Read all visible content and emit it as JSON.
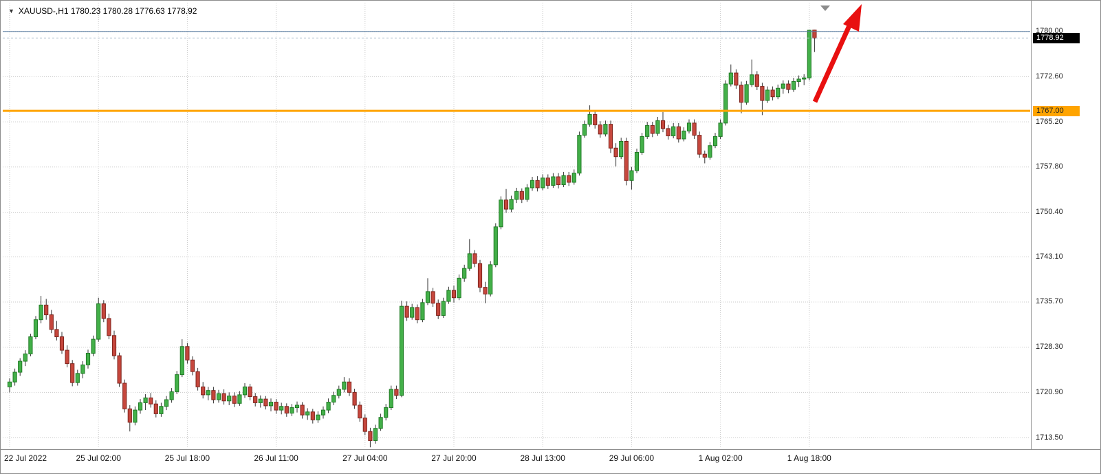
{
  "header": {
    "title_text": "XAUUSD-,H1 1780.23 1780.28 1776.63 1778.92",
    "symbol": "XAUUSD-",
    "timeframe": "H1"
  },
  "chart_data": {
    "type": "candlestick",
    "symbol": "XAUUSD-",
    "timeframe": "H1",
    "current_bar": {
      "open": 1780.23,
      "high": 1780.28,
      "low": 1776.63,
      "close": 1778.92
    },
    "bid_price": "1778.92",
    "horizontal_level": "1767.00",
    "view": {
      "price_min": 1711.7,
      "price_max": 1784.7
    },
    "y_ticks": [
      {
        "price": 1780.0,
        "label": "1780.00"
      },
      {
        "price": 1772.6,
        "label": "1772.60"
      },
      {
        "price": 1765.2,
        "label": "1765.20"
      },
      {
        "price": 1757.8,
        "label": "1757.80"
      },
      {
        "price": 1750.4,
        "label": "1750.40"
      },
      {
        "price": 1743.1,
        "label": "1743.10"
      },
      {
        "price": 1735.7,
        "label": "1735.70"
      },
      {
        "price": 1728.3,
        "label": "1728.30"
      },
      {
        "price": 1720.9,
        "label": "1720.90"
      },
      {
        "price": 1713.5,
        "label": "1713.50"
      }
    ],
    "x_ticks": [
      {
        "index": 0,
        "label": "22 Jul 2022"
      },
      {
        "index": 17,
        "label": "25 Jul 02:00"
      },
      {
        "index": 34,
        "label": "25 Jul 18:00"
      },
      {
        "index": 51,
        "label": "26 Jul 11:00"
      },
      {
        "index": 68,
        "label": "27 Jul 04:00"
      },
      {
        "index": 85,
        "label": "27 Jul 20:00"
      },
      {
        "index": 102,
        "label": "28 Jul 13:00"
      },
      {
        "index": 119,
        "label": "29 Jul 06:00"
      },
      {
        "index": 136,
        "label": "1 Aug 02:00"
      },
      {
        "index": 153,
        "label": "1 Aug 18:00"
      }
    ],
    "lines": [
      {
        "name": "upper-level-line",
        "price": 1780.0,
        "color": "#5a7da0",
        "width": 1,
        "dash": "",
        "badge": null
      },
      {
        "name": "bid-line",
        "price": 1778.92,
        "color": "#b3c3d1",
        "width": 1,
        "dash": "3,3",
        "badge": {
          "text": "1778.92",
          "bg": "#000000",
          "fg": "#ffffff"
        }
      },
      {
        "name": "support-line",
        "price": 1767.0,
        "color": "#ffa400",
        "width": 3,
        "dash": "",
        "badge": {
          "text": "1767.00",
          "bg": "#ffa400",
          "fg": "#222222"
        }
      }
    ],
    "colors": {
      "up_fill": "#43b049",
      "up_border": "#1f7a24",
      "down_fill": "#c6473d",
      "down_border": "#7e231c",
      "wick": "#333333",
      "arrow": "#e81010",
      "shift_marker": "#8b8b8b"
    },
    "candles": [
      [
        1721.8,
        1723.2,
        1720.9,
        1722.6
      ],
      [
        1722.6,
        1724.8,
        1722.0,
        1724.2
      ],
      [
        1724.2,
        1726.5,
        1723.6,
        1726.0
      ],
      [
        1726.0,
        1727.8,
        1725.2,
        1727.2
      ],
      [
        1727.2,
        1730.5,
        1726.8,
        1730.0
      ],
      [
        1730.0,
        1733.4,
        1729.6,
        1732.8
      ],
      [
        1732.8,
        1736.7,
        1732.2,
        1735.2
      ],
      [
        1735.2,
        1736.2,
        1732.8,
        1733.6
      ],
      [
        1733.6,
        1734.4,
        1730.6,
        1731.2
      ],
      [
        1731.2,
        1732.6,
        1729.4,
        1730.0
      ],
      [
        1730.0,
        1730.8,
        1727.2,
        1727.8
      ],
      [
        1727.8,
        1728.6,
        1725.0,
        1725.6
      ],
      [
        1725.6,
        1726.2,
        1721.9,
        1722.5
      ],
      [
        1722.5,
        1724.6,
        1722.0,
        1724.0
      ],
      [
        1724.0,
        1726.0,
        1723.2,
        1725.4
      ],
      [
        1725.4,
        1727.9,
        1724.8,
        1727.3
      ],
      [
        1727.3,
        1730.2,
        1726.8,
        1729.6
      ],
      [
        1729.6,
        1736.4,
        1729.2,
        1735.4
      ],
      [
        1735.4,
        1736.0,
        1732.4,
        1733.0
      ],
      [
        1733.0,
        1733.8,
        1729.6,
        1730.2
      ],
      [
        1730.2,
        1731.0,
        1726.3,
        1726.9
      ],
      [
        1726.9,
        1727.4,
        1721.8,
        1722.4
      ],
      [
        1722.4,
        1723.0,
        1717.6,
        1718.2
      ],
      [
        1718.2,
        1718.8,
        1714.5,
        1716.0
      ],
      [
        1716.0,
        1718.6,
        1715.5,
        1718.0
      ],
      [
        1718.0,
        1719.8,
        1717.4,
        1719.2
      ],
      [
        1719.2,
        1720.6,
        1718.0,
        1720.0
      ],
      [
        1720.0,
        1720.8,
        1718.4,
        1719.0
      ],
      [
        1719.0,
        1719.6,
        1716.8,
        1717.4
      ],
      [
        1717.4,
        1719.2,
        1716.9,
        1718.6
      ],
      [
        1718.6,
        1720.3,
        1718.0,
        1719.7
      ],
      [
        1719.7,
        1721.6,
        1719.2,
        1721.0
      ],
      [
        1721.0,
        1724.4,
        1720.6,
        1723.8
      ],
      [
        1723.8,
        1729.6,
        1723.4,
        1728.4
      ],
      [
        1728.4,
        1729.0,
        1725.6,
        1726.2
      ],
      [
        1726.2,
        1726.8,
        1723.7,
        1724.3
      ],
      [
        1724.3,
        1724.9,
        1721.2,
        1721.8
      ],
      [
        1721.8,
        1722.6,
        1719.9,
        1720.5
      ],
      [
        1720.5,
        1721.8,
        1719.6,
        1721.2
      ],
      [
        1721.2,
        1721.8,
        1719.1,
        1719.7
      ],
      [
        1719.7,
        1721.3,
        1719.2,
        1720.7
      ],
      [
        1720.7,
        1721.4,
        1718.9,
        1719.5
      ],
      [
        1719.5,
        1720.9,
        1718.8,
        1720.3
      ],
      [
        1720.3,
        1720.9,
        1718.5,
        1719.1
      ],
      [
        1719.1,
        1721.1,
        1718.7,
        1720.5
      ],
      [
        1720.5,
        1722.4,
        1720.0,
        1721.8
      ],
      [
        1721.8,
        1722.3,
        1719.6,
        1720.2
      ],
      [
        1720.2,
        1720.8,
        1718.6,
        1719.2
      ],
      [
        1719.2,
        1720.4,
        1718.4,
        1719.8
      ],
      [
        1719.8,
        1720.3,
        1718.1,
        1718.7
      ],
      [
        1718.7,
        1719.9,
        1717.8,
        1719.3
      ],
      [
        1719.3,
        1719.8,
        1717.4,
        1718.0
      ],
      [
        1718.0,
        1719.2,
        1717.3,
        1718.6
      ],
      [
        1718.6,
        1719.1,
        1716.9,
        1717.5
      ],
      [
        1717.5,
        1719.0,
        1717.0,
        1718.4
      ],
      [
        1718.4,
        1719.4,
        1717.6,
        1718.8
      ],
      [
        1718.8,
        1719.3,
        1716.6,
        1717.2
      ],
      [
        1717.2,
        1718.3,
        1716.4,
        1717.7
      ],
      [
        1717.7,
        1718.2,
        1715.8,
        1716.4
      ],
      [
        1716.4,
        1717.8,
        1715.9,
        1717.2
      ],
      [
        1717.2,
        1718.6,
        1716.6,
        1718.0
      ],
      [
        1718.0,
        1719.9,
        1717.5,
        1719.3
      ],
      [
        1719.3,
        1721.0,
        1718.8,
        1720.4
      ],
      [
        1720.4,
        1722.0,
        1719.9,
        1721.4
      ],
      [
        1721.4,
        1723.4,
        1720.9,
        1722.6
      ],
      [
        1722.6,
        1723.2,
        1720.3,
        1720.9
      ],
      [
        1720.9,
        1721.5,
        1718.2,
        1718.8
      ],
      [
        1718.8,
        1719.4,
        1716.1,
        1716.7
      ],
      [
        1716.7,
        1717.3,
        1713.9,
        1714.5
      ],
      [
        1714.5,
        1715.1,
        1711.9,
        1713.0
      ],
      [
        1713.0,
        1715.6,
        1712.5,
        1715.0
      ],
      [
        1715.0,
        1717.4,
        1714.6,
        1716.8
      ],
      [
        1716.8,
        1719.0,
        1716.3,
        1718.4
      ],
      [
        1718.4,
        1722.0,
        1718.0,
        1721.4
      ],
      [
        1721.4,
        1722.0,
        1719.8,
        1720.4
      ],
      [
        1720.4,
        1735.9,
        1720.1,
        1735.0
      ],
      [
        1735.0,
        1735.8,
        1732.6,
        1733.2
      ],
      [
        1733.2,
        1735.4,
        1732.8,
        1734.8
      ],
      [
        1734.8,
        1735.3,
        1732.2,
        1732.8
      ],
      [
        1732.8,
        1736.2,
        1732.4,
        1735.6
      ],
      [
        1735.6,
        1739.6,
        1735.2,
        1737.4
      ],
      [
        1737.4,
        1738.0,
        1734.9,
        1735.5
      ],
      [
        1735.5,
        1736.1,
        1732.9,
        1733.5
      ],
      [
        1733.5,
        1736.4,
        1733.1,
        1735.8
      ],
      [
        1735.8,
        1738.2,
        1735.4,
        1737.6
      ],
      [
        1737.6,
        1738.4,
        1735.6,
        1736.4
      ],
      [
        1736.4,
        1740.2,
        1736.0,
        1739.6
      ],
      [
        1739.6,
        1741.8,
        1739.0,
        1741.2
      ],
      [
        1741.2,
        1746.0,
        1740.8,
        1743.6
      ],
      [
        1743.6,
        1744.2,
        1741.4,
        1742.0
      ],
      [
        1742.0,
        1742.6,
        1737.3,
        1738.1
      ],
      [
        1738.1,
        1739.0,
        1735.5,
        1737.0
      ],
      [
        1737.0,
        1742.4,
        1736.6,
        1741.8
      ],
      [
        1741.8,
        1748.6,
        1741.4,
        1748.0
      ],
      [
        1748.0,
        1753.0,
        1747.6,
        1752.4
      ],
      [
        1752.4,
        1754.2,
        1750.3,
        1750.9
      ],
      [
        1750.9,
        1753.1,
        1750.4,
        1752.5
      ],
      [
        1752.5,
        1754.4,
        1751.9,
        1753.8
      ],
      [
        1753.8,
        1754.3,
        1751.9,
        1752.5
      ],
      [
        1752.5,
        1755.0,
        1752.1,
        1754.4
      ],
      [
        1754.4,
        1756.2,
        1753.9,
        1755.6
      ],
      [
        1755.6,
        1756.3,
        1753.8,
        1754.4
      ],
      [
        1754.4,
        1756.6,
        1754.0,
        1756.0
      ],
      [
        1756.0,
        1756.6,
        1754.2,
        1754.8
      ],
      [
        1754.8,
        1756.8,
        1754.4,
        1756.2
      ],
      [
        1756.2,
        1756.8,
        1754.3,
        1754.9
      ],
      [
        1754.9,
        1757.0,
        1754.5,
        1756.4
      ],
      [
        1756.4,
        1757.0,
        1754.7,
        1755.3
      ],
      [
        1755.3,
        1757.4,
        1754.9,
        1756.8
      ],
      [
        1756.8,
        1763.6,
        1756.4,
        1763.0
      ],
      [
        1763.0,
        1765.4,
        1762.6,
        1764.8
      ],
      [
        1764.8,
        1767.9,
        1764.4,
        1766.4
      ],
      [
        1766.4,
        1767.0,
        1764.1,
        1764.7
      ],
      [
        1764.7,
        1765.3,
        1762.6,
        1763.2
      ],
      [
        1763.2,
        1765.4,
        1762.8,
        1764.8
      ],
      [
        1764.8,
        1765.4,
        1760.1,
        1760.9
      ],
      [
        1760.9,
        1761.7,
        1757.9,
        1759.5
      ],
      [
        1759.5,
        1762.6,
        1759.1,
        1762.0
      ],
      [
        1762.0,
        1762.6,
        1754.8,
        1755.6
      ],
      [
        1755.6,
        1757.8,
        1754.1,
        1757.2
      ],
      [
        1757.2,
        1760.8,
        1756.8,
        1760.2
      ],
      [
        1760.2,
        1763.4,
        1759.8,
        1762.8
      ],
      [
        1762.8,
        1765.2,
        1762.4,
        1764.6
      ],
      [
        1764.6,
        1765.2,
        1762.7,
        1763.3
      ],
      [
        1763.3,
        1766.0,
        1762.9,
        1765.4
      ],
      [
        1765.4,
        1766.8,
        1763.5,
        1764.1
      ],
      [
        1764.1,
        1764.7,
        1762.3,
        1762.9
      ],
      [
        1762.9,
        1765.0,
        1762.5,
        1764.4
      ],
      [
        1764.4,
        1765.0,
        1761.8,
        1762.4
      ],
      [
        1762.4,
        1764.3,
        1762.0,
        1763.7
      ],
      [
        1763.7,
        1765.6,
        1763.3,
        1765.0
      ],
      [
        1765.0,
        1765.6,
        1762.4,
        1763.0
      ],
      [
        1763.0,
        1763.6,
        1759.3,
        1759.9
      ],
      [
        1759.9,
        1760.5,
        1758.4,
        1759.4
      ],
      [
        1759.4,
        1761.9,
        1759.0,
        1761.3
      ],
      [
        1761.3,
        1763.4,
        1760.9,
        1762.8
      ],
      [
        1762.8,
        1765.6,
        1762.4,
        1765.0
      ],
      [
        1765.0,
        1772.0,
        1764.6,
        1771.4
      ],
      [
        1771.4,
        1774.6,
        1771.0,
        1773.2
      ],
      [
        1773.2,
        1773.8,
        1770.6,
        1771.2
      ],
      [
        1771.2,
        1771.8,
        1766.6,
        1768.4
      ],
      [
        1768.4,
        1771.9,
        1768.0,
        1771.3
      ],
      [
        1771.3,
        1775.4,
        1770.9,
        1772.9
      ],
      [
        1772.9,
        1773.5,
        1770.4,
        1771.0
      ],
      [
        1771.0,
        1771.6,
        1766.3,
        1768.7
      ],
      [
        1768.7,
        1771.0,
        1768.3,
        1770.4
      ],
      [
        1770.4,
        1771.0,
        1768.7,
        1769.3
      ],
      [
        1769.3,
        1771.3,
        1768.9,
        1770.7
      ],
      [
        1770.7,
        1772.0,
        1769.8,
        1771.4
      ],
      [
        1771.4,
        1772.0,
        1769.9,
        1770.5
      ],
      [
        1770.5,
        1772.4,
        1770.1,
        1771.8
      ],
      [
        1771.8,
        1772.8,
        1770.9,
        1772.2
      ],
      [
        1772.2,
        1773.0,
        1771.2,
        1772.4
      ],
      [
        1772.4,
        1780.3,
        1772.0,
        1780.2
      ],
      [
        1780.23,
        1780.28,
        1776.63,
        1778.92
      ]
    ],
    "annotations": {
      "trend_arrow": {
        "type": "arrow",
        "color": "#e81010",
        "direction": "up-right"
      },
      "shift_marker": {
        "type": "triangle-down",
        "color": "#8b8b8b"
      }
    }
  }
}
